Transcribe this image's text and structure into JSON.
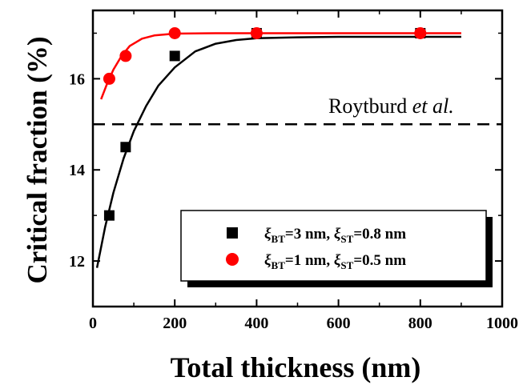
{
  "chart_data": {
    "type": "scatter",
    "xlabel": "Total thickness (nm)",
    "ylabel": "Critical fraction (%)",
    "xlim": [
      0,
      1000
    ],
    "ylim": [
      11,
      17.5
    ],
    "xticks": [
      0,
      200,
      400,
      600,
      800,
      1000
    ],
    "yticks": [
      12,
      14,
      16
    ],
    "xtick_labels": [
      "0",
      "200",
      "400",
      "600",
      "800",
      "1000"
    ],
    "ytick_labels": [
      "12",
      "14",
      "16"
    ],
    "grid": false,
    "legend_position": "bottom-right",
    "series": [
      {
        "name_parts": {
          "sym1": "ξ",
          "sub1": "BT",
          "mid": "=3 nm, ",
          "sym2": "ξ",
          "sub2": "ST",
          "end": "=0.8 nm"
        },
        "marker": "square",
        "color": "#000000",
        "points": [
          {
            "x": 40,
            "y": 13.0
          },
          {
            "x": 80,
            "y": 14.5
          },
          {
            "x": 200,
            "y": 16.5
          },
          {
            "x": 400,
            "y": 17.0
          },
          {
            "x": 800,
            "y": 17.0
          }
        ],
        "fit": [
          {
            "x": 10,
            "y": 11.85
          },
          {
            "x": 30,
            "y": 12.75
          },
          {
            "x": 50,
            "y": 13.5
          },
          {
            "x": 75,
            "y": 14.25
          },
          {
            "x": 100,
            "y": 14.85
          },
          {
            "x": 130,
            "y": 15.4
          },
          {
            "x": 160,
            "y": 15.85
          },
          {
            "x": 200,
            "y": 16.25
          },
          {
            "x": 250,
            "y": 16.6
          },
          {
            "x": 300,
            "y": 16.77
          },
          {
            "x": 350,
            "y": 16.85
          },
          {
            "x": 400,
            "y": 16.89
          },
          {
            "x": 500,
            "y": 16.91
          },
          {
            "x": 600,
            "y": 16.92
          },
          {
            "x": 700,
            "y": 16.92
          },
          {
            "x": 800,
            "y": 16.92
          },
          {
            "x": 900,
            "y": 16.92
          }
        ]
      },
      {
        "name_parts": {
          "sym1": "ξ",
          "sub1": "BT",
          "mid": "=1 nm, ",
          "sym2": "ξ",
          "sub2": "ST",
          "end": "=0.5 nm"
        },
        "marker": "circle",
        "color": "#ff0000",
        "points": [
          {
            "x": 40,
            "y": 16.0
          },
          {
            "x": 80,
            "y": 16.5
          },
          {
            "x": 200,
            "y": 17.0
          },
          {
            "x": 400,
            "y": 17.0
          },
          {
            "x": 800,
            "y": 17.0
          }
        ],
        "fit": [
          {
            "x": 20,
            "y": 15.55
          },
          {
            "x": 35,
            "y": 15.9
          },
          {
            "x": 50,
            "y": 16.2
          },
          {
            "x": 70,
            "y": 16.5
          },
          {
            "x": 90,
            "y": 16.72
          },
          {
            "x": 120,
            "y": 16.88
          },
          {
            "x": 150,
            "y": 16.95
          },
          {
            "x": 200,
            "y": 16.99
          },
          {
            "x": 300,
            "y": 17.0
          },
          {
            "x": 400,
            "y": 17.0
          },
          {
            "x": 600,
            "y": 17.0
          },
          {
            "x": 900,
            "y": 17.0
          }
        ]
      }
    ],
    "reference_line": {
      "y": 15.0,
      "style": "dashed",
      "label_main": "Roytburd ",
      "label_italic": "et al."
    }
  }
}
